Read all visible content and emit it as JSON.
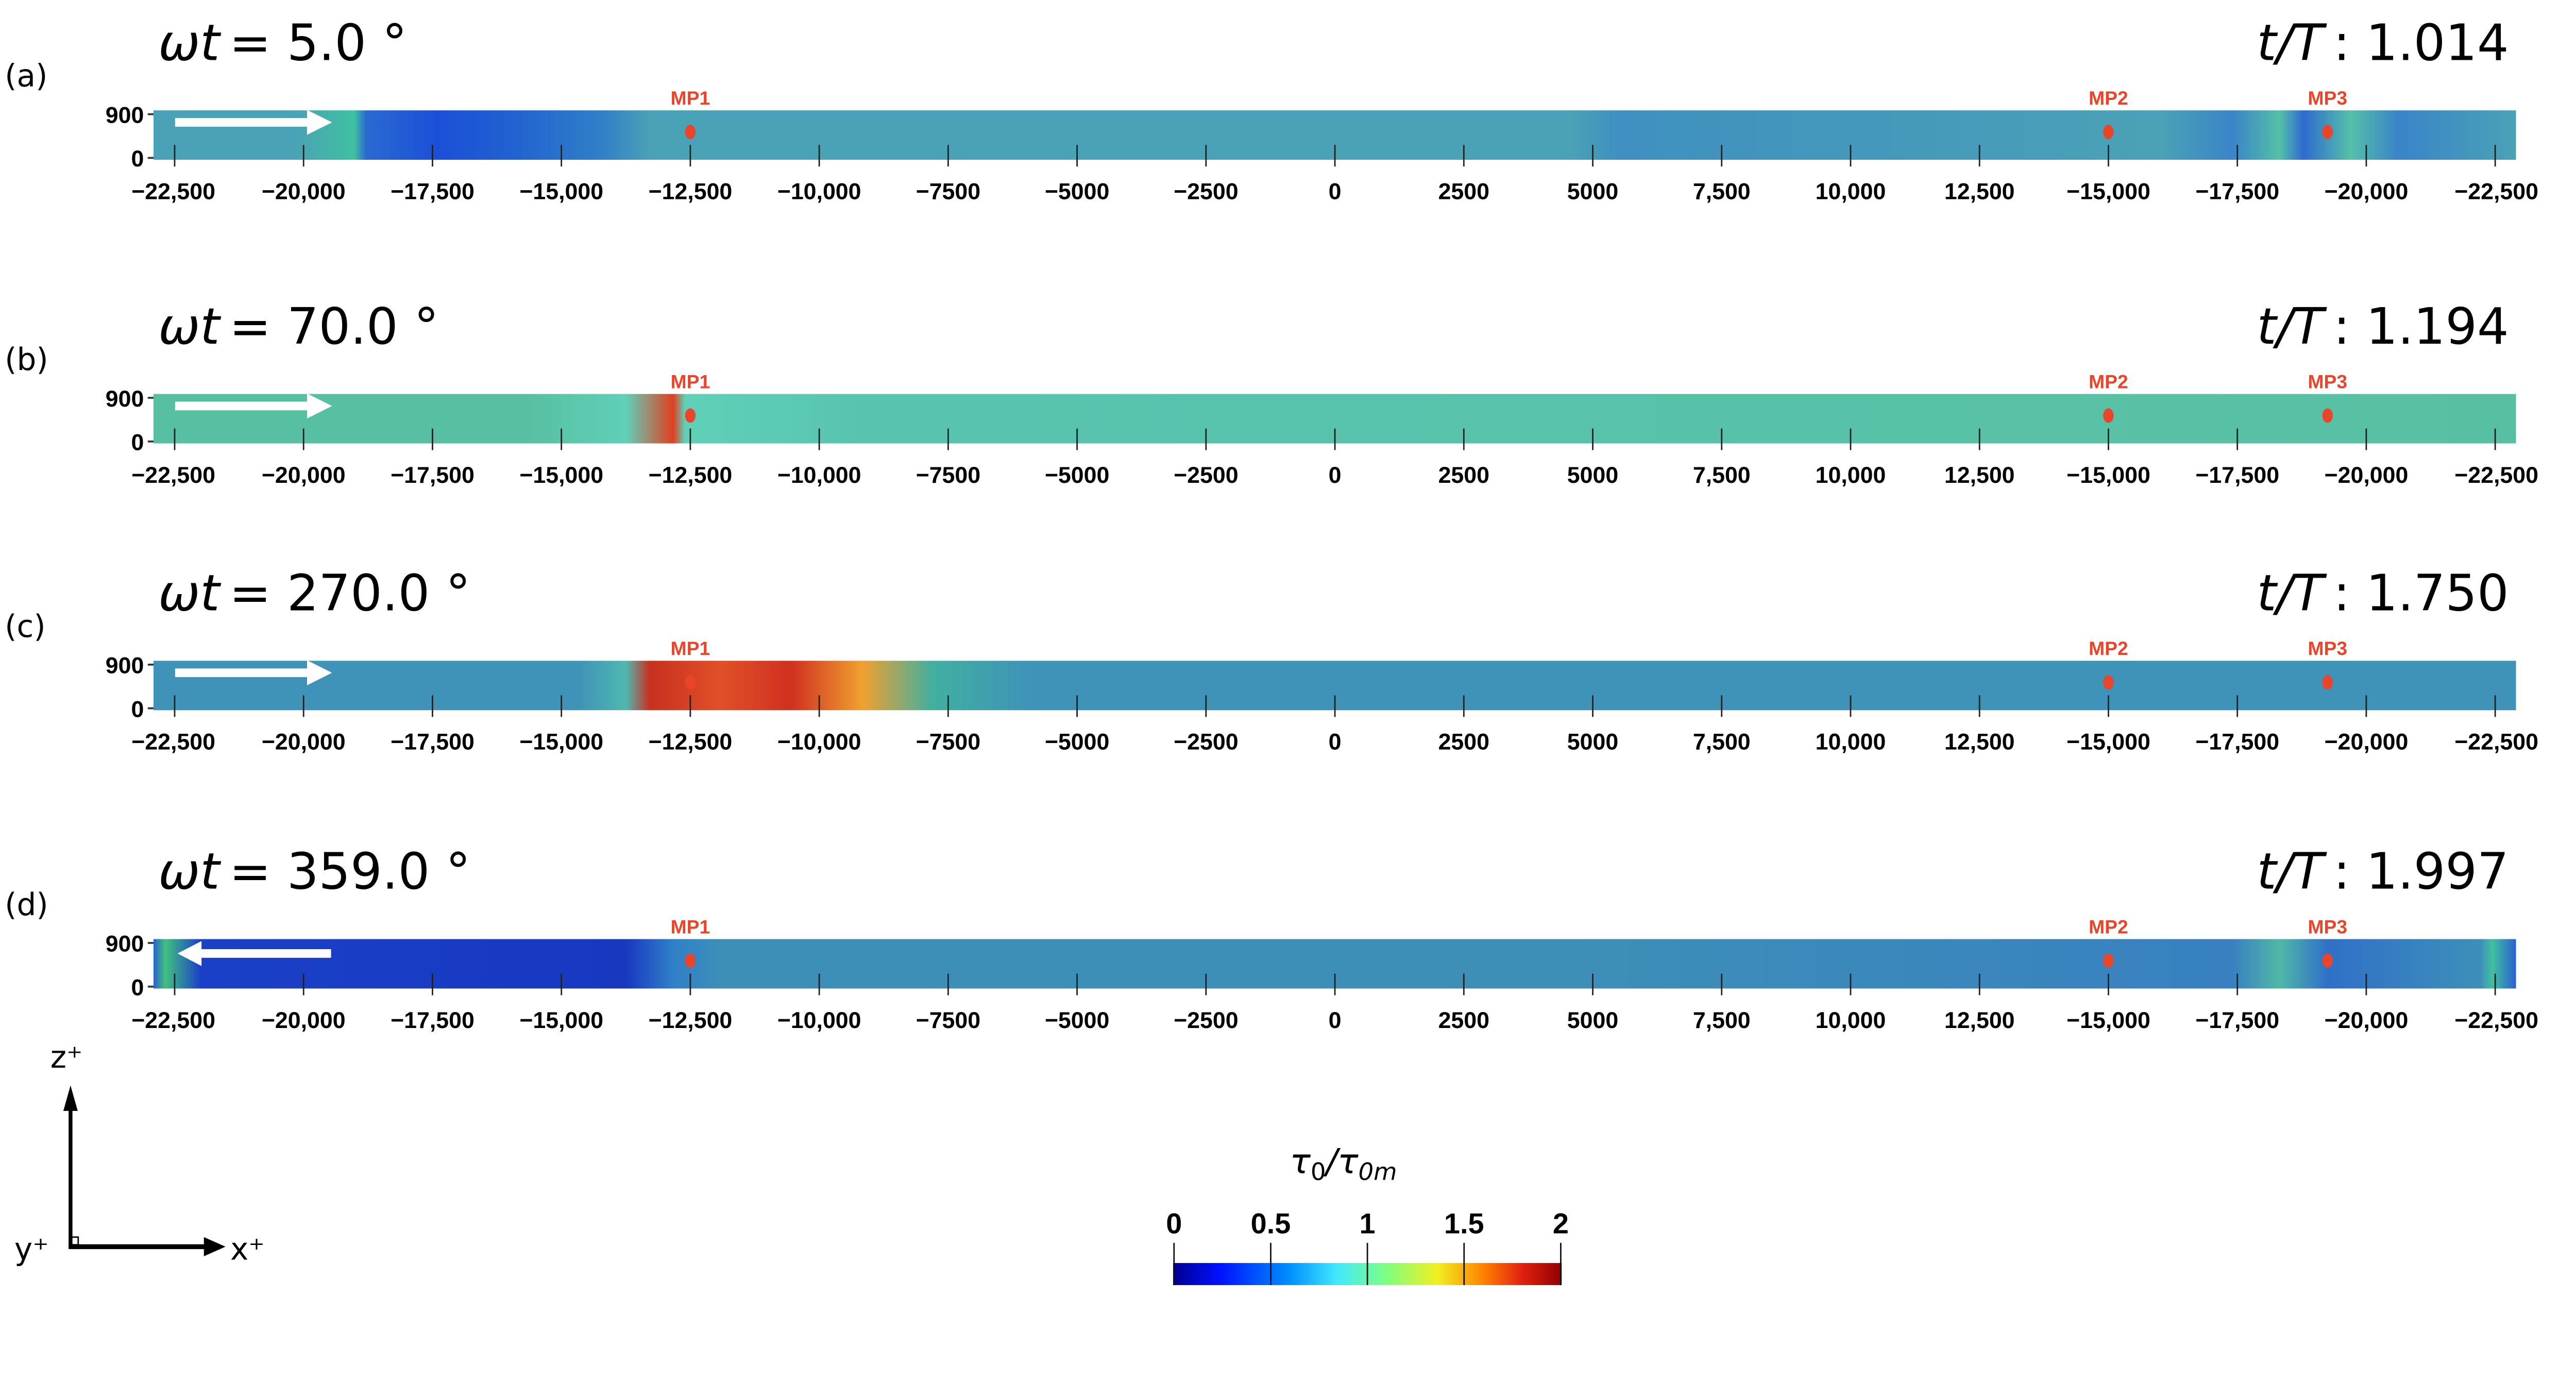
{
  "x_tick_labels": [
    "−22,500",
    "−20,000",
    "−17,500",
    "−15,000",
    "−12,500",
    "−10,000",
    "−7500",
    "−5000",
    "−2500",
    "0",
    "2500",
    "5000",
    "7,500",
    "10,000",
    "12,500",
    "−15,000",
    "−17,500",
    "−20,000",
    "−22,500"
  ],
  "z_tick_labels": [
    "900",
    "0"
  ],
  "panels": [
    {
      "label": "(a)",
      "omega_symbol": "ωt",
      "omega_value": "= 5.0 °",
      "t_symbol": "t/T",
      "t_value": ": 1.014",
      "flow_direction": "right",
      "mp_labels": [
        "MP1",
        "MP2",
        "MP3"
      ]
    },
    {
      "label": "(b)",
      "omega_symbol": "ωt",
      "omega_value": "= 70.0 °",
      "t_symbol": "t/T",
      "t_value": ": 1.194",
      "flow_direction": "right",
      "mp_labels": [
        "MP1",
        "MP2",
        "MP3"
      ]
    },
    {
      "label": "(c)",
      "omega_symbol": "ωt",
      "omega_value": "= 270.0 °",
      "t_symbol": "t/T",
      "t_value": ": 1.750",
      "flow_direction": "right",
      "mp_labels": [
        "MP1",
        "MP2",
        "MP3"
      ]
    },
    {
      "label": "(d)",
      "omega_symbol": "ωt",
      "omega_value": "= 359.0 °",
      "t_symbol": "t/T",
      "t_value": ": 1.997",
      "flow_direction": "left",
      "mp_labels": [
        "MP1",
        "MP2",
        "MP3"
      ]
    }
  ],
  "colorbar": {
    "title_main": "τ",
    "title_sub1": "0",
    "title_slash": "/τ",
    "title_sub2": "0m",
    "tick_labels": [
      "0",
      "0.5",
      "1",
      "1.5",
      "2"
    ],
    "range": [
      0,
      2
    ],
    "colormap": "jet"
  },
  "axes_triad": {
    "z": "z⁺",
    "x": "x⁺",
    "y": "y⁺"
  },
  "colors": {
    "marker": "#e8452a",
    "arrow": "#ffffff"
  }
}
